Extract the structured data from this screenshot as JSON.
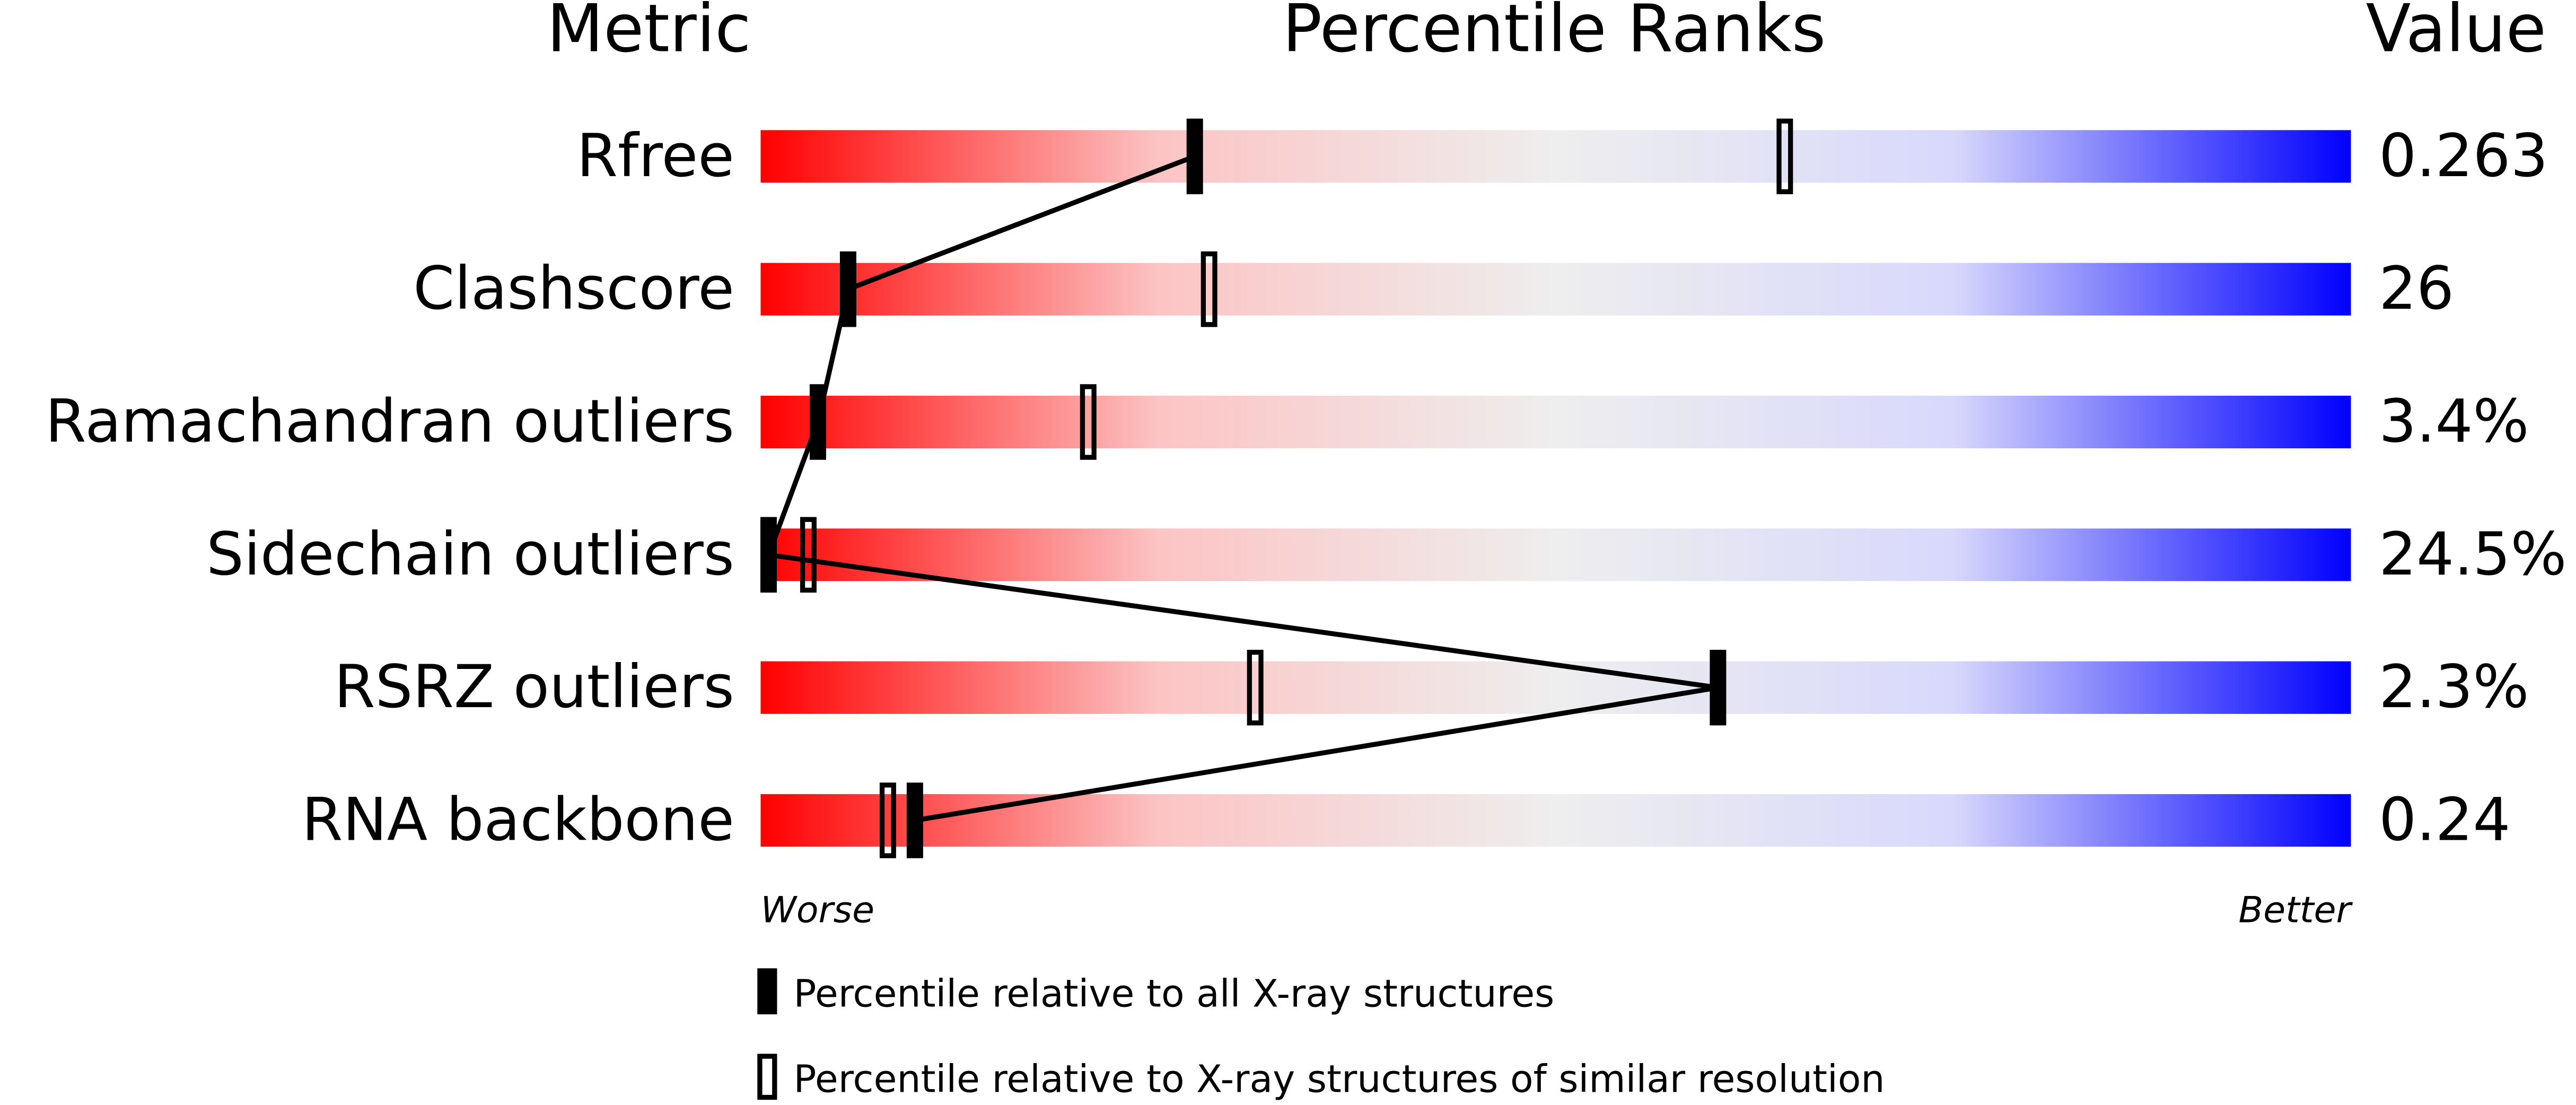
{
  "chart_data": {
    "type": "percentile",
    "title": "Percentile Ranks",
    "metric_header": "Metric",
    "value_header": "Value",
    "categories": [
      "Rfree",
      "Clashscore",
      "Ramachandran outliers",
      "Sidechain outliers",
      "RSRZ outliers",
      "RNA backbone"
    ],
    "metric_values": [
      "0.263",
      "26",
      "3.4%",
      "24.5%",
      "2.3%",
      "0.24"
    ],
    "series": [
      {
        "name": "Percentile relative to all X-ray structures",
        "color": "#000000",
        "values": [
          27.3,
          5.5,
          3.6,
          0.5,
          60.2,
          9.7
        ]
      },
      {
        "name": "Percentile relative to X-ray structures of similar resolution",
        "color": "#000000",
        "values": [
          64.4,
          28.2,
          20.6,
          3.0,
          31.1,
          8.0
        ]
      }
    ],
    "xlim": [
      0,
      100
    ],
    "x_low_label": "Worse",
    "x_high_label": "Better",
    "gradient": [
      "#ff0000",
      "#fcc4c4",
      "#eeeeee",
      "#d8d8fc",
      "#0000ff"
    ]
  }
}
